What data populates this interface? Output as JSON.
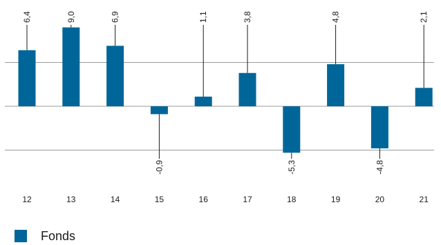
{
  "chart_data": {
    "type": "bar",
    "categories": [
      "12",
      "13",
      "14",
      "15",
      "16",
      "17",
      "18",
      "19",
      "20",
      "21"
    ],
    "series": [
      {
        "name": "Fonds",
        "values": [
          6.4,
          9.0,
          6.9,
          -0.9,
          1.1,
          3.8,
          -5.3,
          4.8,
          -4.8,
          2.1
        ]
      }
    ],
    "value_labels": [
      "6,4",
      "9,0",
      "6,9",
      "-0,9",
      "1,1",
      "3,8",
      "-5,3",
      "4,8",
      "-4,8",
      "2,1"
    ],
    "gridlines_y": [
      -5,
      0,
      5
    ],
    "grid": true,
    "legend_position": "bottom-left",
    "bar_color": "#006699",
    "grid_color": "#9a9a9a",
    "leader_color": "#1a1a1a"
  },
  "legend": {
    "label": "Fonds",
    "color": "#006699"
  }
}
